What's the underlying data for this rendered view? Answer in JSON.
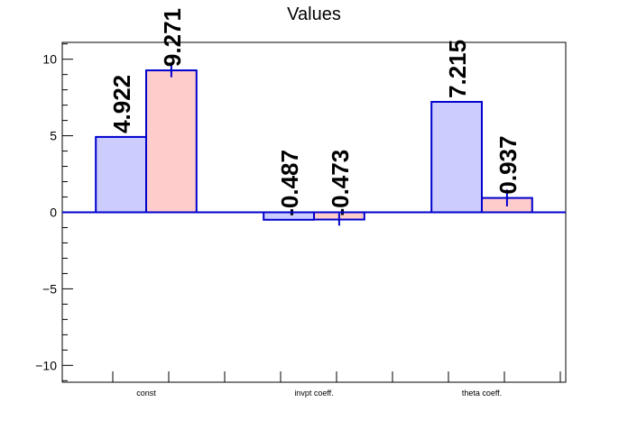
{
  "chart_data": {
    "type": "bar",
    "title": "Values",
    "xlabel": "",
    "ylabel": "",
    "categories": [
      "const",
      "invpt coeff.",
      "theta coeff."
    ],
    "series": [
      {
        "values": [
          4.922,
          -0.487,
          7.215
        ],
        "errors": [
          0,
          0,
          0
        ],
        "color": "#ccccff",
        "stroke": "#0000cc"
      },
      {
        "values": [
          9.271,
          -0.473,
          0.937
        ],
        "errors": [
          0.45,
          0.4,
          0.55
        ],
        "color": "#ffcccc",
        "stroke": "#0000cc"
      }
    ],
    "data_labels": [
      [
        "4.922",
        "-0.487",
        "7.215"
      ],
      [
        "9.271",
        "-0.473",
        "0.937"
      ]
    ],
    "ylim": [
      -11.1,
      11.1
    ],
    "yticks": [
      -10,
      -5,
      0,
      5,
      10
    ],
    "ytick_labels": [
      "−10",
      "−5",
      "0",
      "5",
      "10"
    ],
    "grid": false,
    "legend": "none"
  }
}
